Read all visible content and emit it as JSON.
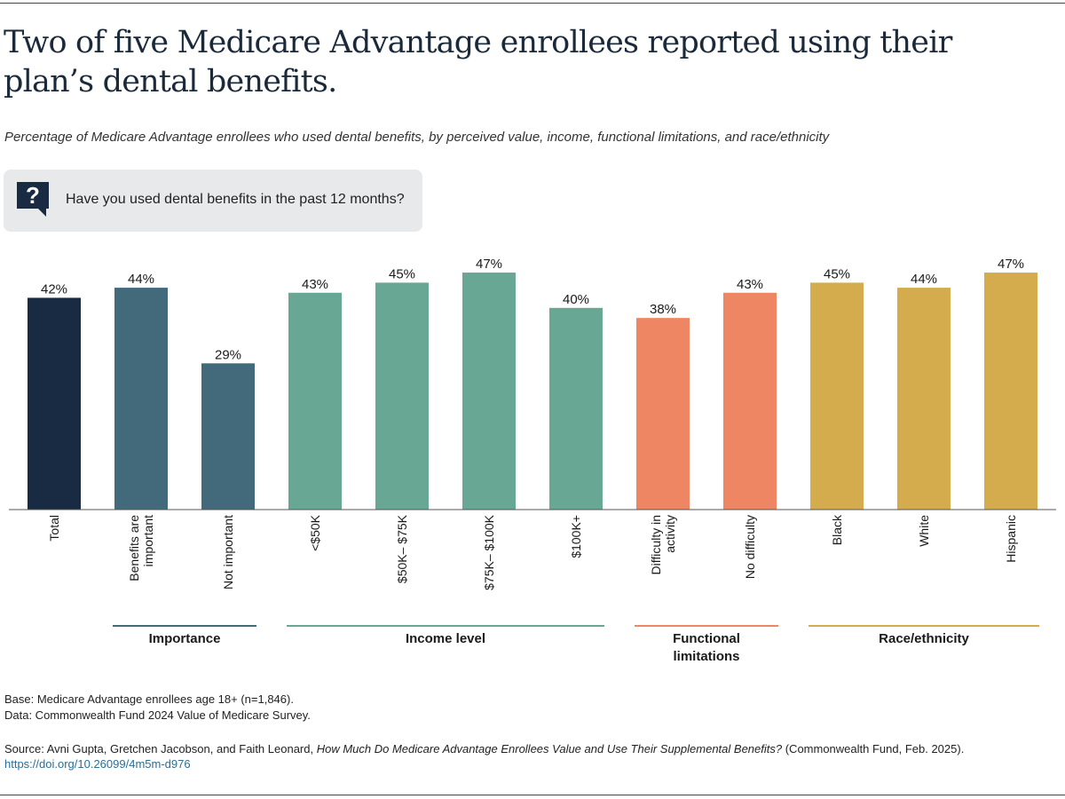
{
  "title": "Two of five Medicare Advantage enrollees reported using their plan’s dental benefits.",
  "subtitle": "Percentage of Medicare Advantage enrollees who used dental benefits, by perceived value, income, functional limitations, and race/ethnicity",
  "question": {
    "icon": "question-speech-bubble-icon",
    "text": "Have you used dental benefits in the past 12 months?"
  },
  "chart_data": {
    "type": "bar",
    "title": "Two of five Medicare Advantage enrollees reported using their plan’s dental benefits.",
    "ylabel": "",
    "xlabel": "",
    "ylim": [
      0,
      50
    ],
    "grid": false,
    "categories": [
      [
        "Total"
      ],
      [
        "Benefits are",
        "important"
      ],
      [
        "Not important"
      ],
      [
        "<$50K"
      ],
      [
        "$50K– $75K"
      ],
      [
        "$75K– $100K"
      ],
      [
        "$100K+"
      ],
      [
        "Difficulty in",
        "activity"
      ],
      [
        "No difficulty"
      ],
      [
        "Black"
      ],
      [
        "White"
      ],
      [
        "Hispanic"
      ]
    ],
    "values": [
      42,
      44,
      29,
      43,
      45,
      47,
      40,
      38,
      43,
      45,
      44,
      47
    ],
    "value_labels": [
      "42%",
      "44%",
      "29%",
      "43%",
      "45%",
      "47%",
      "40%",
      "38%",
      "43%",
      "45%",
      "44%",
      "47%"
    ],
    "colors": [
      "#182b42",
      "#426a7b",
      "#426a7b",
      "#67a794",
      "#67a794",
      "#67a794",
      "#67a794",
      "#ef8663",
      "#ef8663",
      "#d4ac4d",
      "#d4ac4d",
      "#d4ac4d"
    ],
    "groups": [
      {
        "label": [
          "Importance"
        ],
        "start": 1,
        "end": 2,
        "color": "#426a7b"
      },
      {
        "label": [
          "Income level"
        ],
        "start": 3,
        "end": 6,
        "color": "#67a794"
      },
      {
        "label": [
          "Functional",
          "limitations"
        ],
        "start": 7,
        "end": 8,
        "color": "#ef8663"
      },
      {
        "label": [
          "Race/ethnicity"
        ],
        "start": 9,
        "end": 11,
        "color": "#d4ac4d"
      }
    ]
  },
  "notes": {
    "base": "Base: Medicare Advantage enrollees age 18+ (n=1,846).",
    "data": "Data: Commonwealth Fund 2024 Value of Medicare Survey."
  },
  "source": {
    "prefix": "Source: Avni Gupta, Gretchen Jacobson, and Faith Leonard, ",
    "report_title": "How Much Do Medicare Advantage Enrollees Value and Use Their Supplemental Benefits?",
    "suffix": " (Commonwealth Fund, Feb. 2025).",
    "doi": "https://doi.org/10.26099/4m5m-d976"
  }
}
